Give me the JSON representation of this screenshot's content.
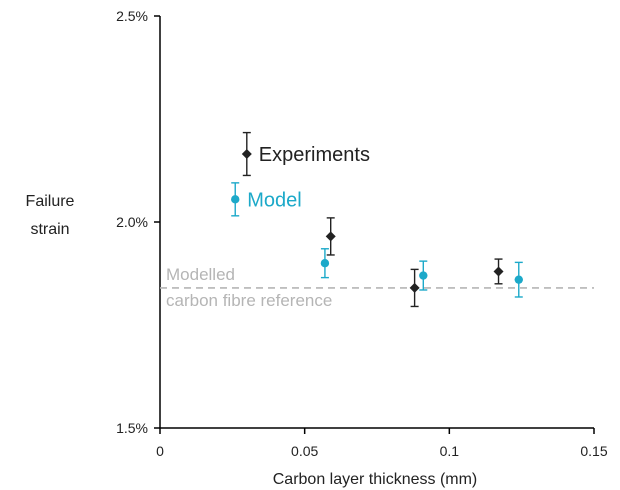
{
  "chart_data": {
    "type": "scatter",
    "title": "",
    "xlabel": "Carbon layer thickness (mm)",
    "ylabel_lines": [
      "Failure",
      "strain"
    ],
    "xlim": [
      0,
      0.15
    ],
    "ylim": [
      1.5,
      2.5
    ],
    "x_ticks": [
      0,
      0.05,
      0.1,
      0.15
    ],
    "x_tick_labels": [
      "0",
      "0.05",
      "0.1",
      "0.15"
    ],
    "y_ticks": [
      1.5,
      2.0,
      2.5
    ],
    "y_tick_labels": [
      "1.5%",
      "2.0%",
      "2.5%"
    ],
    "grid": false,
    "series": [
      {
        "name": "Experiments",
        "color": "#222222",
        "marker": "diamond",
        "x": [
          0.03,
          0.059,
          0.088,
          0.117
        ],
        "y": [
          2.165,
          1.965,
          1.84,
          1.88
        ],
        "err": [
          0.052,
          0.045,
          0.045,
          0.03
        ]
      },
      {
        "name": "Model",
        "color": "#1ca9c9",
        "marker": "circle",
        "x": [
          0.026,
          0.057,
          0.091,
          0.124
        ],
        "y": [
          2.055,
          1.9,
          1.87,
          1.86
        ],
        "err": [
          0.04,
          0.035,
          0.035,
          0.042
        ]
      }
    ],
    "reference": {
      "lines": [
        "Modelled",
        "carbon fibre reference"
      ],
      "y": 1.84,
      "color": "#b5b5b5",
      "style": "dashed"
    }
  }
}
